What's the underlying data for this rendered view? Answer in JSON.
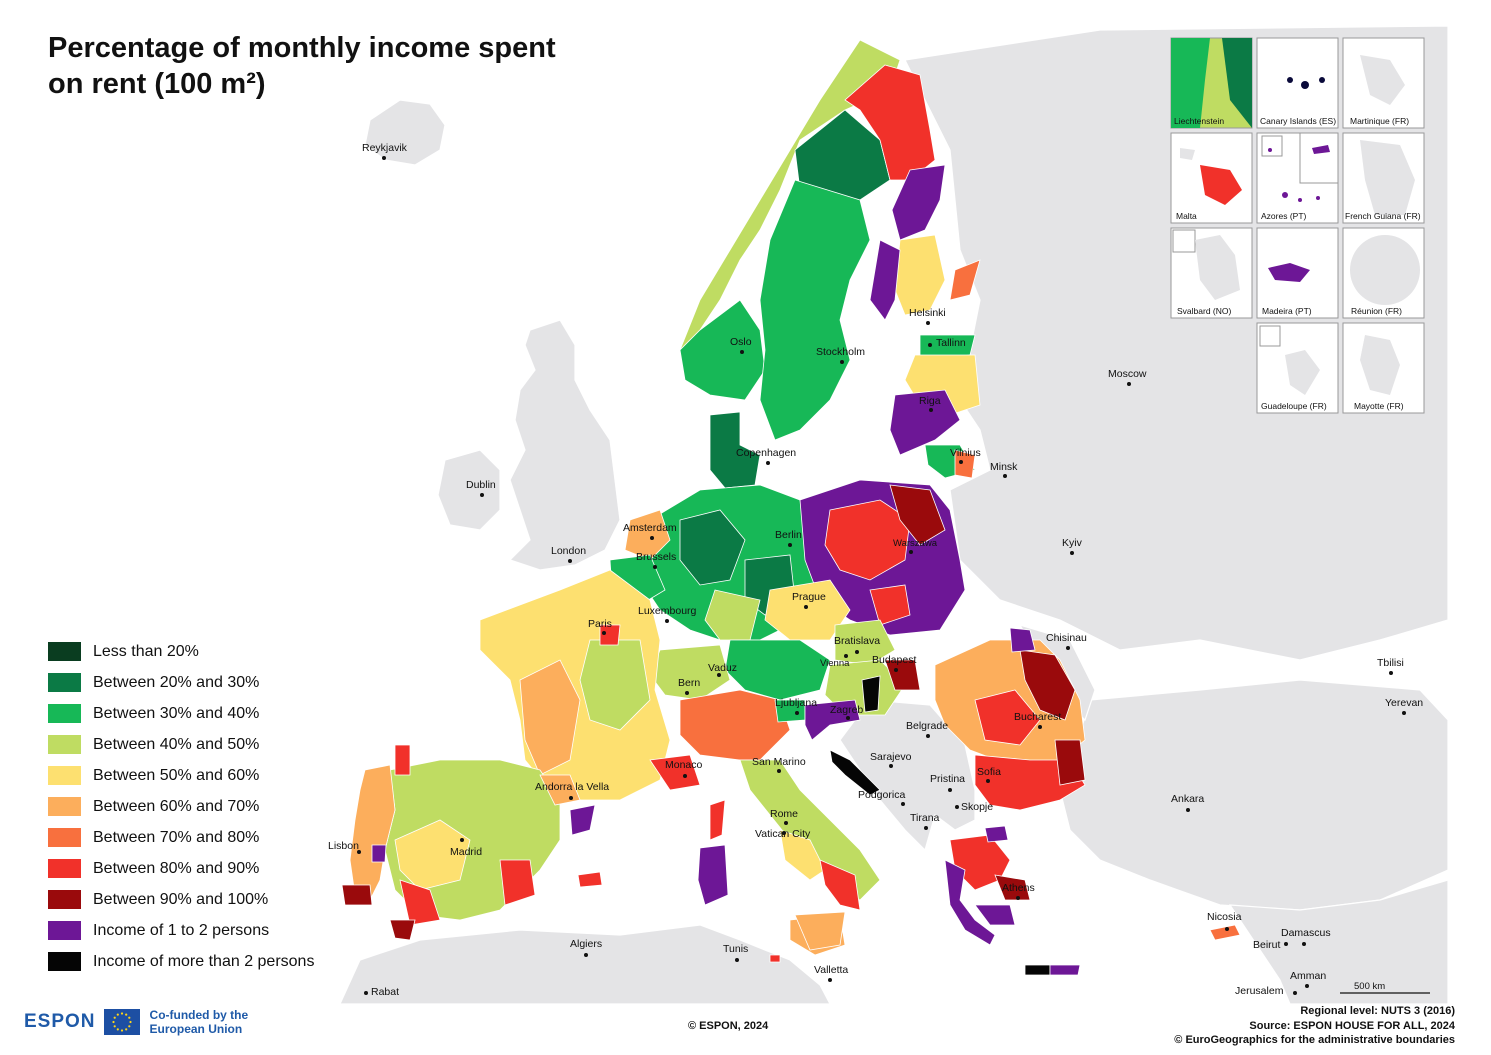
{
  "title": "Percentage of monthly income spent on rent (100 m²)",
  "colors": {
    "sea": "#ffffff",
    "non_espon_land": "#e4e4e6",
    "border": "#ffffff"
  },
  "legend": [
    {
      "label": "Less than 20%",
      "color": "#0a3d20"
    },
    {
      "label": "Between 20% and 30%",
      "color": "#0b7a45"
    },
    {
      "label": "Between 30% and 40%",
      "color": "#17b857"
    },
    {
      "label": "Between 40% and 50%",
      "color": "#bfdc62"
    },
    {
      "label": "Between 50% and 60%",
      "color": "#fde070"
    },
    {
      "label": "Between 60% and 70%",
      "color": "#fcae5c"
    },
    {
      "label": "Between 70% and 80%",
      "color": "#f8703e"
    },
    {
      "label": "Between 80% and 90%",
      "color": "#f1312a"
    },
    {
      "label": "Between 90% and 100%",
      "color": "#9a0a0c"
    },
    {
      "label": "Income of 1 to 2 persons",
      "color": "#6d1796"
    },
    {
      "label": "Income of more than 2 persons",
      "color": "#050505"
    }
  ],
  "cities": [
    {
      "name": "Reykjavik"
    },
    {
      "name": "Oslo"
    },
    {
      "name": "Stockholm"
    },
    {
      "name": "Helsinki"
    },
    {
      "name": "Tallinn"
    },
    {
      "name": "Moscow"
    },
    {
      "name": "Riga"
    },
    {
      "name": "Copenhagen"
    },
    {
      "name": "Vilnius"
    },
    {
      "name": "Minsk"
    },
    {
      "name": "Dublin"
    },
    {
      "name": "Amsterdam"
    },
    {
      "name": "Berlin"
    },
    {
      "name": "London"
    },
    {
      "name": "Brussels"
    },
    {
      "name": "Warszawa"
    },
    {
      "name": "Kyiv"
    },
    {
      "name": "Luxembourg"
    },
    {
      "name": "Prague"
    },
    {
      "name": "Paris"
    },
    {
      "name": "Bratislava"
    },
    {
      "name": "Vienna"
    },
    {
      "name": "Chisinau"
    },
    {
      "name": "Vaduz"
    },
    {
      "name": "Budapest"
    },
    {
      "name": "Bern"
    },
    {
      "name": "Tbilisi"
    },
    {
      "name": "Ljubljana"
    },
    {
      "name": "Zagreb"
    },
    {
      "name": "Yerevan"
    },
    {
      "name": "Belgrade"
    },
    {
      "name": "Bucharest"
    },
    {
      "name": "Sarajevo"
    },
    {
      "name": "Monaco"
    },
    {
      "name": "San Marino"
    },
    {
      "name": "Sofia"
    },
    {
      "name": "Pristina"
    },
    {
      "name": "Andorra la Vella"
    },
    {
      "name": "Podgorica"
    },
    {
      "name": "Skopje"
    },
    {
      "name": "Ankara"
    },
    {
      "name": "Rome"
    },
    {
      "name": "Tirana"
    },
    {
      "name": "Vatican City"
    },
    {
      "name": "Lisbon"
    },
    {
      "name": "Madrid"
    },
    {
      "name": "Athens"
    },
    {
      "name": "Nicosia"
    },
    {
      "name": "Damascus"
    },
    {
      "name": "Algiers"
    },
    {
      "name": "Beirut"
    },
    {
      "name": "Tunis"
    },
    {
      "name": "Valletta"
    },
    {
      "name": "Amman"
    },
    {
      "name": "Rabat"
    },
    {
      "name": "Jerusalem"
    }
  ],
  "insets": [
    {
      "label": "Liechtenstein"
    },
    {
      "label": "Canary Islands (ES)"
    },
    {
      "label": "Martinique (FR)"
    },
    {
      "label": "Malta"
    },
    {
      "label": "Azores (PT)"
    },
    {
      "label": "French Guiana (FR)"
    },
    {
      "label": "Svalbard (NO)"
    },
    {
      "label": "Madeira (PT)"
    },
    {
      "label": "Réunion (FR)"
    },
    {
      "label": "Guadeloupe (FR)"
    },
    {
      "label": "Mayotte (FR)"
    }
  ],
  "scale_bar": "500 km",
  "footer": {
    "espon": "ESPON",
    "cofunded": "Co-funded by the European Union",
    "copyright": "© ESPON, 2024",
    "regional_level": "Regional level: NUTS 3 (2016)",
    "source": "Source: ESPON HOUSE FOR ALL, 2024",
    "boundaries": "© EuroGeographics for the administrative boundaries"
  }
}
